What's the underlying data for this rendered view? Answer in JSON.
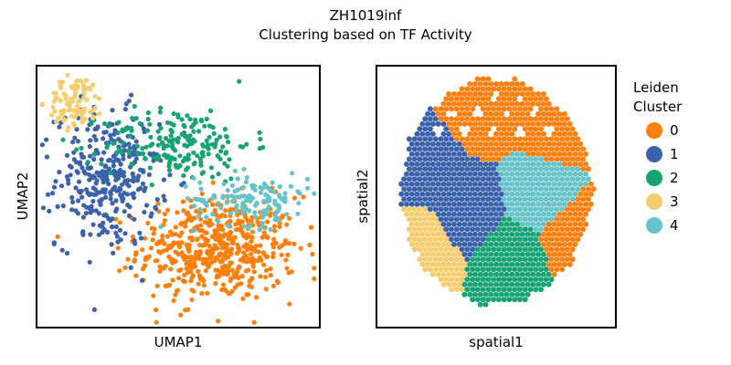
{
  "figure": {
    "title_line1": "ZH1019inf",
    "title_line2": "Clustering based on TF Activity"
  },
  "legend": {
    "title_line1": "Leiden",
    "title_line2": "Cluster",
    "placement": "right"
  },
  "cluster_colors": {
    "0": "#ff7f0e",
    "1": "#3b62ab",
    "2": "#18a374",
    "3": "#f6cd6e",
    "4": "#67c3ca"
  },
  "chart_data": [
    {
      "type": "scatter",
      "name": "umap",
      "title": "",
      "xlabel": "UMAP1",
      "ylabel": "UMAP2",
      "xlim": [
        0,
        100
      ],
      "ylim": [
        0,
        100
      ],
      "ticks_visible": false,
      "grid": false,
      "clusters": [
        {
          "label": "0",
          "center": [
            64,
            30
          ],
          "spread": [
            14,
            10
          ],
          "count": 520,
          "note_region": "lower-right"
        },
        {
          "label": "1",
          "center": [
            25,
            57
          ],
          "spread": [
            9,
            13
          ],
          "count": 330,
          "note_region": "left"
        },
        {
          "label": "2",
          "center": [
            50,
            70
          ],
          "spread": [
            13,
            7
          ],
          "count": 200,
          "note_region": "top-center"
        },
        {
          "label": "3",
          "center": [
            14,
            86
          ],
          "spread": [
            5,
            5
          ],
          "count": 90,
          "note_region": "top-left"
        },
        {
          "label": "4",
          "center": [
            76,
            49
          ],
          "spread": [
            10,
            5
          ],
          "count": 140,
          "note_region": "center-right"
        }
      ]
    },
    {
      "type": "scatter",
      "name": "spatial",
      "title": "",
      "xlabel": "spatial1",
      "ylabel": "spatial2",
      "xlim": [
        0,
        100
      ],
      "ylim": [
        0,
        100
      ],
      "ticks_visible": false,
      "grid": false,
      "tissue_center": [
        50,
        52
      ],
      "tissue_radius": [
        40,
        43
      ],
      "region_seeds": [
        {
          "label": "0",
          "center": [
            45,
            84
          ]
        },
        {
          "label": "0",
          "center": [
            75,
            78
          ]
        },
        {
          "label": "0",
          "center": [
            82,
            35
          ]
        },
        {
          "label": "1",
          "center": [
            20,
            62
          ]
        },
        {
          "label": "1",
          "center": [
            38,
            45
          ]
        },
        {
          "label": "2",
          "center": [
            57,
            27
          ]
        },
        {
          "label": "3",
          "center": [
            18,
            30
          ]
        },
        {
          "label": "4",
          "center": [
            68,
            50
          ]
        }
      ]
    }
  ]
}
